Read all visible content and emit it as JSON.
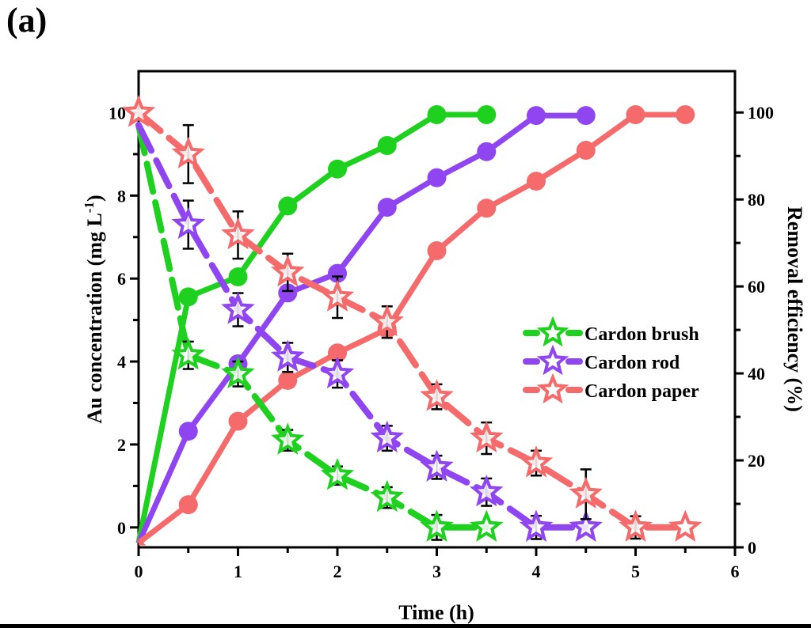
{
  "panel_label": "(a)",
  "chart_data": {
    "type": "line",
    "title": "",
    "xlabel": "Time (h)",
    "ylabel_left": "Au concentration (mg L⁻¹)",
    "ylabel_left_main": "Au concentration (mg L",
    "ylabel_left_sup": "-1",
    "ylabel_left_close": ")",
    "ylabel_right": "Removal efficiency (%)",
    "xlim": [
      0,
      6
    ],
    "ylim_left": [
      -0.48,
      11
    ],
    "ylim_right": [
      0,
      109.5
    ],
    "x_ticks": [
      "0",
      "1",
      "2",
      "3",
      "4",
      "5",
      "6"
    ],
    "y_left_ticks": [
      "0",
      "2",
      "4",
      "6",
      "8",
      "10"
    ],
    "y_right_ticks": [
      "0",
      "20",
      "40",
      "60",
      "80",
      "100"
    ],
    "grid": false,
    "legend_position": "center-right",
    "legend": [
      "Cardon brush",
      "Cardon rod",
      "Cardon paper"
    ],
    "colors": {
      "brush": "#1fd11f",
      "rod": "#8f45f0",
      "paper": "#f56b6b",
      "error": "#000000"
    },
    "series": [
      {
        "name": "Cardon brush",
        "key": "brush",
        "concentration": {
          "x": [
            0,
            0.5,
            1,
            1.5,
            2,
            2.5,
            3,
            3.5
          ],
          "y": [
            9.7,
            4.15,
            3.7,
            2.1,
            1.25,
            0.72,
            0.0,
            0.0
          ],
          "err": [
            0,
            0.33,
            0.3,
            0.25,
            0.22,
            0.25,
            0.3,
            0
          ]
        },
        "removal": {
          "x": [
            0,
            0.5,
            1,
            1.5,
            2,
            2.5,
            3,
            3.5
          ],
          "y": [
            1.0,
            57.6,
            62.2,
            78.5,
            87.0,
            92.4,
            99.5,
            99.5
          ]
        }
      },
      {
        "name": "Cardon rod",
        "key": "rod",
        "concentration": {
          "x": [
            0,
            0.5,
            1,
            1.5,
            2,
            2.5,
            3,
            3.5,
            4,
            4.5
          ],
          "y": [
            9.7,
            7.3,
            5.25,
            4.1,
            3.7,
            2.15,
            1.45,
            0.85,
            0.0,
            0.0
          ],
          "err": [
            0,
            0.58,
            0.4,
            0.35,
            0.33,
            0.3,
            0.28,
            0.33,
            0.28,
            0
          ]
        },
        "removal": {
          "x": [
            0,
            0.5,
            1,
            1.5,
            2,
            2.5,
            3,
            3.5,
            4,
            4.5
          ],
          "y": [
            1.0,
            26.7,
            42.2,
            58.5,
            63.0,
            78.2,
            85.0,
            91.0,
            99.3,
            99.3
          ]
        }
      },
      {
        "name": "Cardon paper",
        "key": "paper",
        "concentration": {
          "x": [
            0,
            0.5,
            1,
            1.5,
            2,
            2.5,
            3,
            3.5,
            4,
            4.5,
            5,
            5.5
          ],
          "y": [
            10.0,
            9.0,
            7.05,
            6.15,
            5.55,
            4.95,
            3.15,
            2.15,
            1.55,
            0.8,
            0.0,
            0.0
          ],
          "err": [
            0,
            0.7,
            0.57,
            0.45,
            0.5,
            0.38,
            0.3,
            0.38,
            0.3,
            0.6,
            0.27,
            0
          ]
        },
        "removal": {
          "x": [
            0,
            0.5,
            1,
            1.5,
            2,
            2.5,
            3,
            3.5,
            4,
            4.5,
            5,
            5.5
          ],
          "y": [
            1.0,
            9.8,
            29.0,
            38.4,
            44.7,
            50.2,
            68.2,
            78.0,
            84.2,
            91.3,
            99.5,
            99.5
          ]
        }
      }
    ]
  }
}
